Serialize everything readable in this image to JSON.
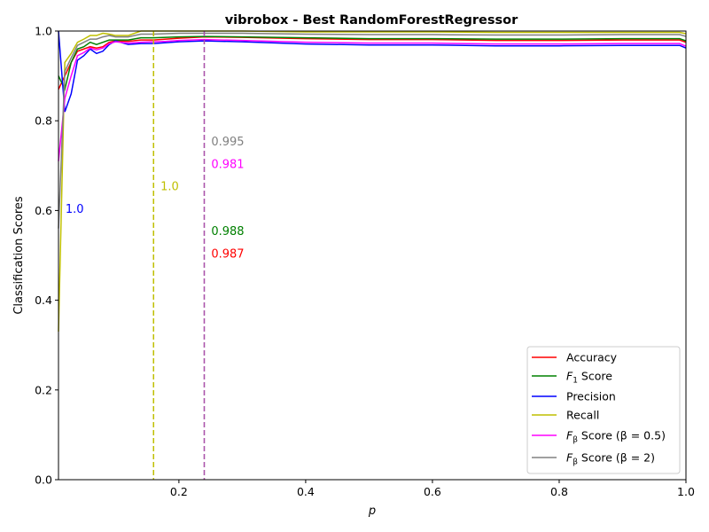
{
  "chart_data": {
    "type": "line",
    "title": "vibrobox - Best RandomForestRegressor",
    "xlabel": "p",
    "ylabel": "Classification Scores",
    "xlim": [
      0.01,
      1.0
    ],
    "ylim": [
      0.0,
      1.0
    ],
    "xticks": [
      "0.2",
      "0.4",
      "0.6",
      "0.8",
      "1.0"
    ],
    "xtick_values": [
      0.2,
      0.4,
      0.6,
      0.8,
      1.0
    ],
    "yticks": [
      "0.0",
      "0.2",
      "0.4",
      "0.6",
      "0.8",
      "1.0"
    ],
    "ytick_values": [
      0.0,
      0.2,
      0.4,
      0.6,
      0.8,
      1.0
    ],
    "grid": false,
    "legend_position": "lower-right",
    "vlines": [
      {
        "x": 0.16,
        "color": "#bfbf00"
      },
      {
        "x": 0.24,
        "color": "#808080"
      },
      {
        "x": 0.24,
        "color": "#ff00ff"
      }
    ],
    "annotations": [
      {
        "text": "1.0",
        "x": 0.021,
        "y": 0.605,
        "color": "#0000ff"
      },
      {
        "text": "1.0",
        "x": 0.171,
        "y": 0.655,
        "color": "#bfbf00"
      },
      {
        "text": "0.995",
        "x": 0.251,
        "y": 0.755,
        "color": "#808080"
      },
      {
        "text": "0.981",
        "x": 0.251,
        "y": 0.705,
        "color": "#ff00ff"
      },
      {
        "text": "0.988",
        "x": 0.251,
        "y": 0.555,
        "color": "#008000"
      },
      {
        "text": "0.987",
        "x": 0.251,
        "y": 0.505,
        "color": "#ff0000"
      }
    ],
    "x": [
      0.01,
      0.02,
      0.03,
      0.04,
      0.05,
      0.06,
      0.07,
      0.08,
      0.09,
      0.1,
      0.12,
      0.14,
      0.16,
      0.18,
      0.2,
      0.24,
      0.3,
      0.4,
      0.5,
      0.6,
      0.7,
      0.8,
      0.9,
      0.99,
      1.0
    ],
    "series": [
      {
        "name": "Accuracy",
        "color": "#ff0000",
        "label_math": false,
        "values": [
          0.87,
          0.9,
          0.93,
          0.955,
          0.96,
          0.965,
          0.962,
          0.965,
          0.975,
          0.978,
          0.977,
          0.98,
          0.98,
          0.982,
          0.984,
          0.987,
          0.986,
          0.983,
          0.981,
          0.981,
          0.979,
          0.979,
          0.98,
          0.98,
          0.975
        ]
      },
      {
        "name": "F",
        "subscript": "1",
        "suffix": " Score",
        "color": "#008000",
        "values": [
          0.9,
          0.87,
          0.93,
          0.96,
          0.965,
          0.975,
          0.97,
          0.975,
          0.98,
          0.98,
          0.98,
          0.985,
          0.985,
          0.986,
          0.987,
          0.988,
          0.987,
          0.985,
          0.983,
          0.983,
          0.982,
          0.982,
          0.983,
          0.983,
          0.978
        ]
      },
      {
        "name": "Precision",
        "color": "#0000ff",
        "values": [
          1.0,
          0.82,
          0.86,
          0.935,
          0.945,
          0.96,
          0.95,
          0.955,
          0.97,
          0.978,
          0.97,
          0.972,
          0.972,
          0.974,
          0.976,
          0.978,
          0.976,
          0.971,
          0.969,
          0.969,
          0.967,
          0.967,
          0.968,
          0.968,
          0.962
        ]
      },
      {
        "name": "Recall",
        "color": "#bfbf00",
        "values": [
          0.33,
          0.93,
          0.95,
          0.975,
          0.982,
          0.99,
          0.99,
          0.995,
          0.993,
          0.99,
          0.99,
          1.0,
          1.0,
          1.0,
          1.0,
          1.0,
          1.0,
          0.998,
          0.998,
          0.998,
          0.997,
          0.997,
          0.997,
          0.997,
          0.994
        ]
      },
      {
        "name": "F",
        "subscript": "β",
        "suffix": " Score (β = 0.5)",
        "color": "#ff00ff",
        "values": [
          0.71,
          0.85,
          0.9,
          0.945,
          0.952,
          0.962,
          0.958,
          0.962,
          0.972,
          0.976,
          0.973,
          0.975,
          0.976,
          0.977,
          0.979,
          0.981,
          0.979,
          0.975,
          0.973,
          0.973,
          0.971,
          0.971,
          0.972,
          0.972,
          0.966
        ]
      },
      {
        "name": "F",
        "subscript": "β",
        "suffix": " Score (β = 2)",
        "color": "#808080",
        "values": [
          0.56,
          0.91,
          0.94,
          0.968,
          0.975,
          0.982,
          0.982,
          0.987,
          0.99,
          0.987,
          0.987,
          0.993,
          0.993,
          0.994,
          0.995,
          0.995,
          0.995,
          0.993,
          0.992,
          0.992,
          0.991,
          0.991,
          0.992,
          0.992,
          0.988
        ]
      }
    ]
  }
}
